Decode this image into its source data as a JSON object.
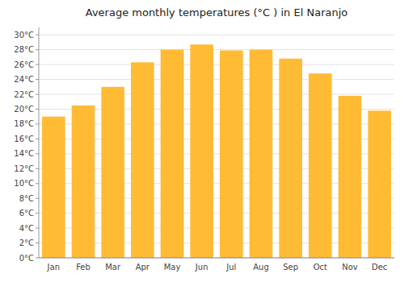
{
  "chart_data": {
    "type": "bar",
    "title": "Average monthly temperatures (°C ) in El Naranjo",
    "categories": [
      "Jan",
      "Feb",
      "Mar",
      "Apr",
      "May",
      "Jun",
      "Jul",
      "Aug",
      "Sep",
      "Oct",
      "Nov",
      "Dec"
    ],
    "values": [
      19.0,
      20.5,
      23.0,
      26.3,
      28.0,
      28.7,
      27.9,
      28.0,
      26.8,
      24.8,
      21.8,
      19.8
    ],
    "color": "#FFBB33",
    "ylim": [
      0,
      31
    ],
    "yticks": [
      {
        "value": 0,
        "label": "0°C"
      },
      {
        "value": 2,
        "label": "2°C"
      },
      {
        "value": 4,
        "label": "4°C"
      },
      {
        "value": 6,
        "label": "6°C"
      },
      {
        "value": 8,
        "label": "8°C"
      },
      {
        "value": 10,
        "label": "10°C"
      },
      {
        "value": 12,
        "label": "12°C"
      },
      {
        "value": 14,
        "label": "14°C"
      },
      {
        "value": 16,
        "label": "16°C"
      },
      {
        "value": 18,
        "label": "18°C"
      },
      {
        "value": 20,
        "label": "20°C"
      },
      {
        "value": 22,
        "label": "22°C"
      },
      {
        "value": 24,
        "label": "24°C"
      },
      {
        "value": 26,
        "label": "26°C"
      },
      {
        "value": 28,
        "label": "28°C"
      },
      {
        "value": 30,
        "label": "30°C"
      }
    ],
    "grid": true
  }
}
